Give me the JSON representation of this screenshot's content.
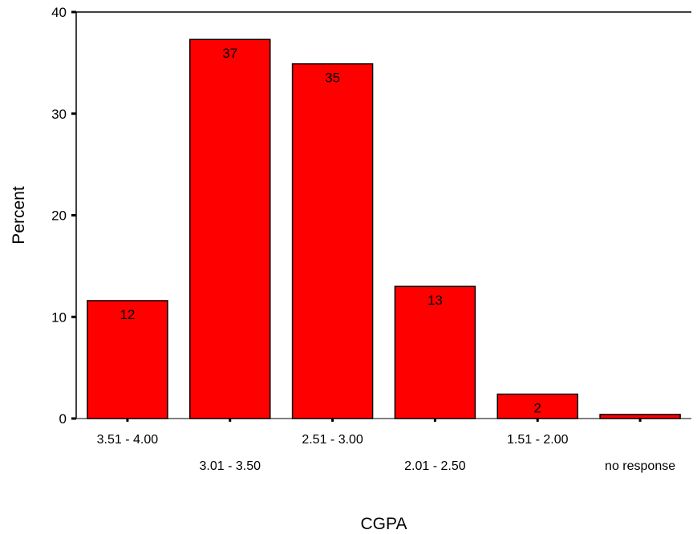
{
  "chart_data": {
    "type": "bar",
    "title": "",
    "xlabel": "CGPA",
    "ylabel": "Percent",
    "categories": [
      "3.51 - 4.00",
      "3.01 - 3.50",
      "2.51 - 3.00",
      "2.01 - 2.50",
      "1.51 - 2.00",
      "no response"
    ],
    "values": [
      11.6,
      37.3,
      34.9,
      13.0,
      2.4,
      0.4
    ],
    "data_labels": [
      "12",
      "37",
      "35",
      "13",
      "2",
      ""
    ],
    "ylim": [
      0,
      40
    ],
    "yticks": [
      0,
      10,
      20,
      30,
      40
    ],
    "grid": false,
    "legend": "none",
    "bar_color": "#ff0000"
  }
}
